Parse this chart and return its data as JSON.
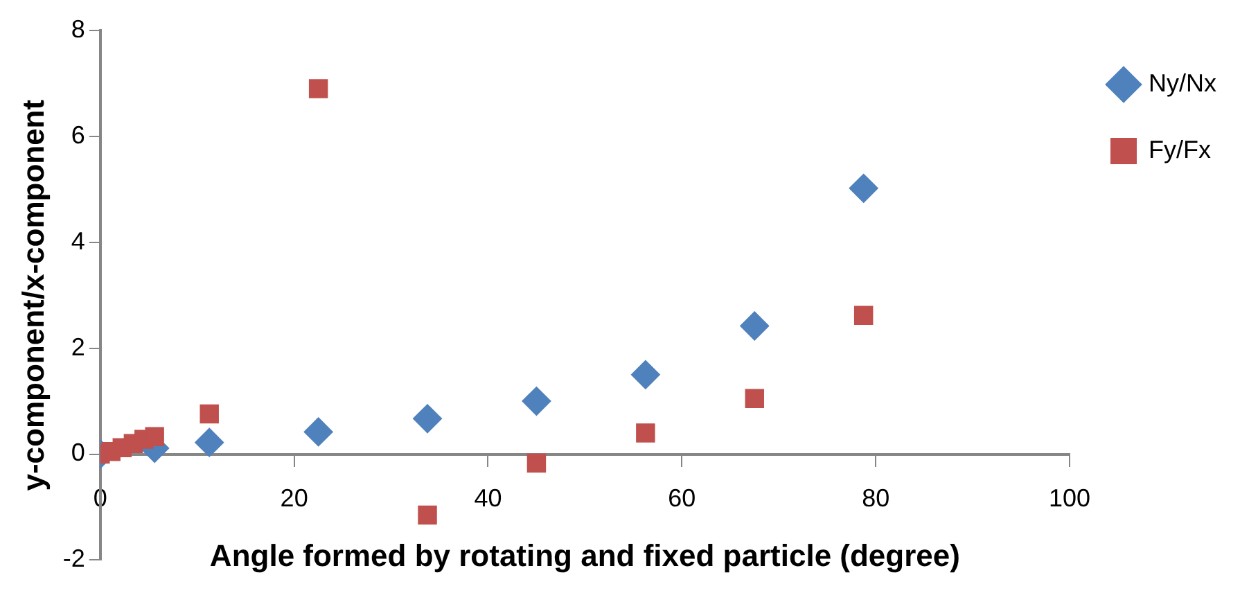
{
  "chart_data": {
    "type": "scatter",
    "xlabel": "Angle formed by rotating and fixed particle (degree)",
    "ylabel": "y-component/x-component",
    "xlim": [
      0,
      100
    ],
    "xticks": [
      0,
      20,
      40,
      60,
      80,
      100
    ],
    "ylim": [
      -2,
      8
    ],
    "yticks": [
      -2,
      0,
      2,
      4,
      6,
      8
    ],
    "grid": false,
    "legend": "top right",
    "series": [
      {
        "name": "Ny/Nx",
        "color": "#4f81bd",
        "marker": "diamond",
        "x": [
          0,
          1.1,
          2.25,
          3.4,
          4.5,
          5.6,
          11.25,
          22.5,
          33.75,
          45,
          56.25,
          67.5,
          78.75
        ],
        "values": [
          0,
          null,
          null,
          null,
          null,
          0.11,
          0.22,
          0.42,
          0.67,
          1.0,
          1.5,
          2.42,
          5.02
        ]
      },
      {
        "name": "Fy/Fx",
        "color": "#c0504d",
        "marker": "square",
        "x": [
          0,
          1.1,
          2.25,
          3.4,
          4.5,
          5.6,
          11.25,
          22.5,
          33.75,
          45,
          56.25,
          67.5,
          78.75
        ],
        "values": [
          0,
          0.05,
          0.12,
          0.2,
          0.28,
          0.33,
          0.76,
          6.9,
          -1.15,
          -0.17,
          0.4,
          1.05,
          2.62
        ]
      }
    ]
  }
}
